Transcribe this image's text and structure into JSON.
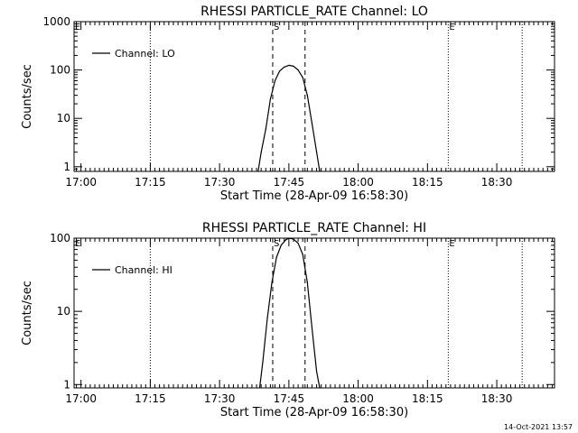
{
  "footer_timestamp": "14-Oct-2021 13:57",
  "chart_data": [
    {
      "type": "line",
      "title": "RHESSI PARTICLE_RATE Channel: LO",
      "xlabel": "Start Time (28-Apr-09 16:58:30)",
      "ylabel": "Counts/sec",
      "xlim": [
        "16:58:30",
        "18:42:30"
      ],
      "x_ticks": [
        "17:00",
        "17:15",
        "17:30",
        "17:45",
        "18:00",
        "18:15",
        "18:30"
      ],
      "y_scale": "log",
      "ylim": [
        0.8,
        1000
      ],
      "y_ticks": [
        "1",
        "10",
        "100",
        "1000"
      ],
      "legend": "top-left",
      "series": [
        {
          "name": "Channel: LO",
          "color": "#000000",
          "x": [
            "17:38:20",
            "17:39:00",
            "17:40:00",
            "17:41:00",
            "17:42:00",
            "17:43:00",
            "17:44:00",
            "17:45:00",
            "17:46:00",
            "17:47:00",
            "17:48:00",
            "17:49:00",
            "17:50:00",
            "17:51:00",
            "17:51:40"
          ],
          "y": [
            0.8,
            2,
            6,
            25,
            60,
            95,
            115,
            125,
            120,
            100,
            70,
            30,
            8,
            2,
            0.8
          ]
        }
      ],
      "vlines_dotted": [
        "17:15:00",
        "18:19:30",
        "18:35:30"
      ],
      "vlines_dashed": [
        "17:41:30",
        "17:48:30"
      ],
      "markers": [
        {
          "label": "E",
          "x": "16:58:30"
        },
        {
          "label": "S",
          "x": "17:41:30"
        },
        {
          "label": "E",
          "x": "18:19:30"
        }
      ]
    },
    {
      "type": "line",
      "title": "RHESSI PARTICLE_RATE Channel: HI",
      "xlabel": "Start Time (28-Apr-09 16:58:30)",
      "ylabel": "Counts/sec",
      "xlim": [
        "16:58:30",
        "18:42:30"
      ],
      "x_ticks": [
        "17:00",
        "17:15",
        "17:30",
        "17:45",
        "18:00",
        "18:15",
        "18:30"
      ],
      "y_scale": "log",
      "ylim": [
        0.9,
        100
      ],
      "y_ticks": [
        "1",
        "10",
        "100"
      ],
      "legend": "top-left",
      "series": [
        {
          "name": "Channel: HI",
          "color": "#000000",
          "x": [
            "17:38:40",
            "17:39:20",
            "17:40:20",
            "17:41:20",
            "17:42:20",
            "17:43:20",
            "17:44:20",
            "17:45:00",
            "17:46:00",
            "17:47:00",
            "17:48:00",
            "17:49:00",
            "17:50:00",
            "17:51:00",
            "17:51:40"
          ],
          "y": [
            0.9,
            2,
            8,
            25,
            55,
            80,
            95,
            100,
            97,
            85,
            60,
            25,
            6,
            1.5,
            0.9
          ]
        }
      ],
      "vlines_dotted": [
        "17:15:00",
        "18:19:30",
        "18:35:30"
      ],
      "vlines_dashed": [
        "17:41:30",
        "17:48:30"
      ],
      "markers": [
        {
          "label": "E",
          "x": "16:58:30"
        },
        {
          "label": "S",
          "x": "17:41:30"
        },
        {
          "label": "E",
          "x": "18:19:30"
        }
      ]
    }
  ]
}
